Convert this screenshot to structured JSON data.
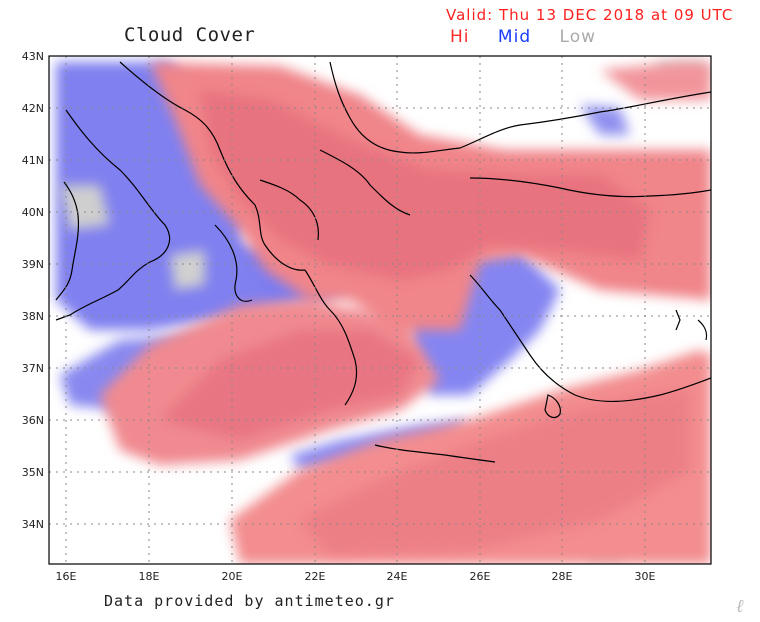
{
  "title": "Cloud Cover",
  "valid_text": "Valid: Thu 13 DEC 2018 at 09 UTC",
  "legend": [
    {
      "label": "Hi",
      "color": "#ff2a2a"
    },
    {
      "label": "Mid",
      "color": "#1a3cff"
    },
    {
      "label": "Low",
      "color": "#aaaaaa"
    }
  ],
  "credit": "Data provided by antimeteo.gr",
  "watermark": "ℓ",
  "lat_labels": [
    "43N",
    "42N",
    "41N",
    "40N",
    "39N",
    "38N",
    "37N",
    "36N",
    "35N",
    "34N"
  ],
  "lon_labels": [
    "16E",
    "18E",
    "20E",
    "22E",
    "24E",
    "26E",
    "28E",
    "30E"
  ],
  "layer_colors": {
    "hi": "#f08a8e",
    "hi_strong": "#e8707e",
    "mid": "#7f7ff2",
    "mid_strong": "#6a6ae8",
    "low": "#c8c8c8"
  }
}
